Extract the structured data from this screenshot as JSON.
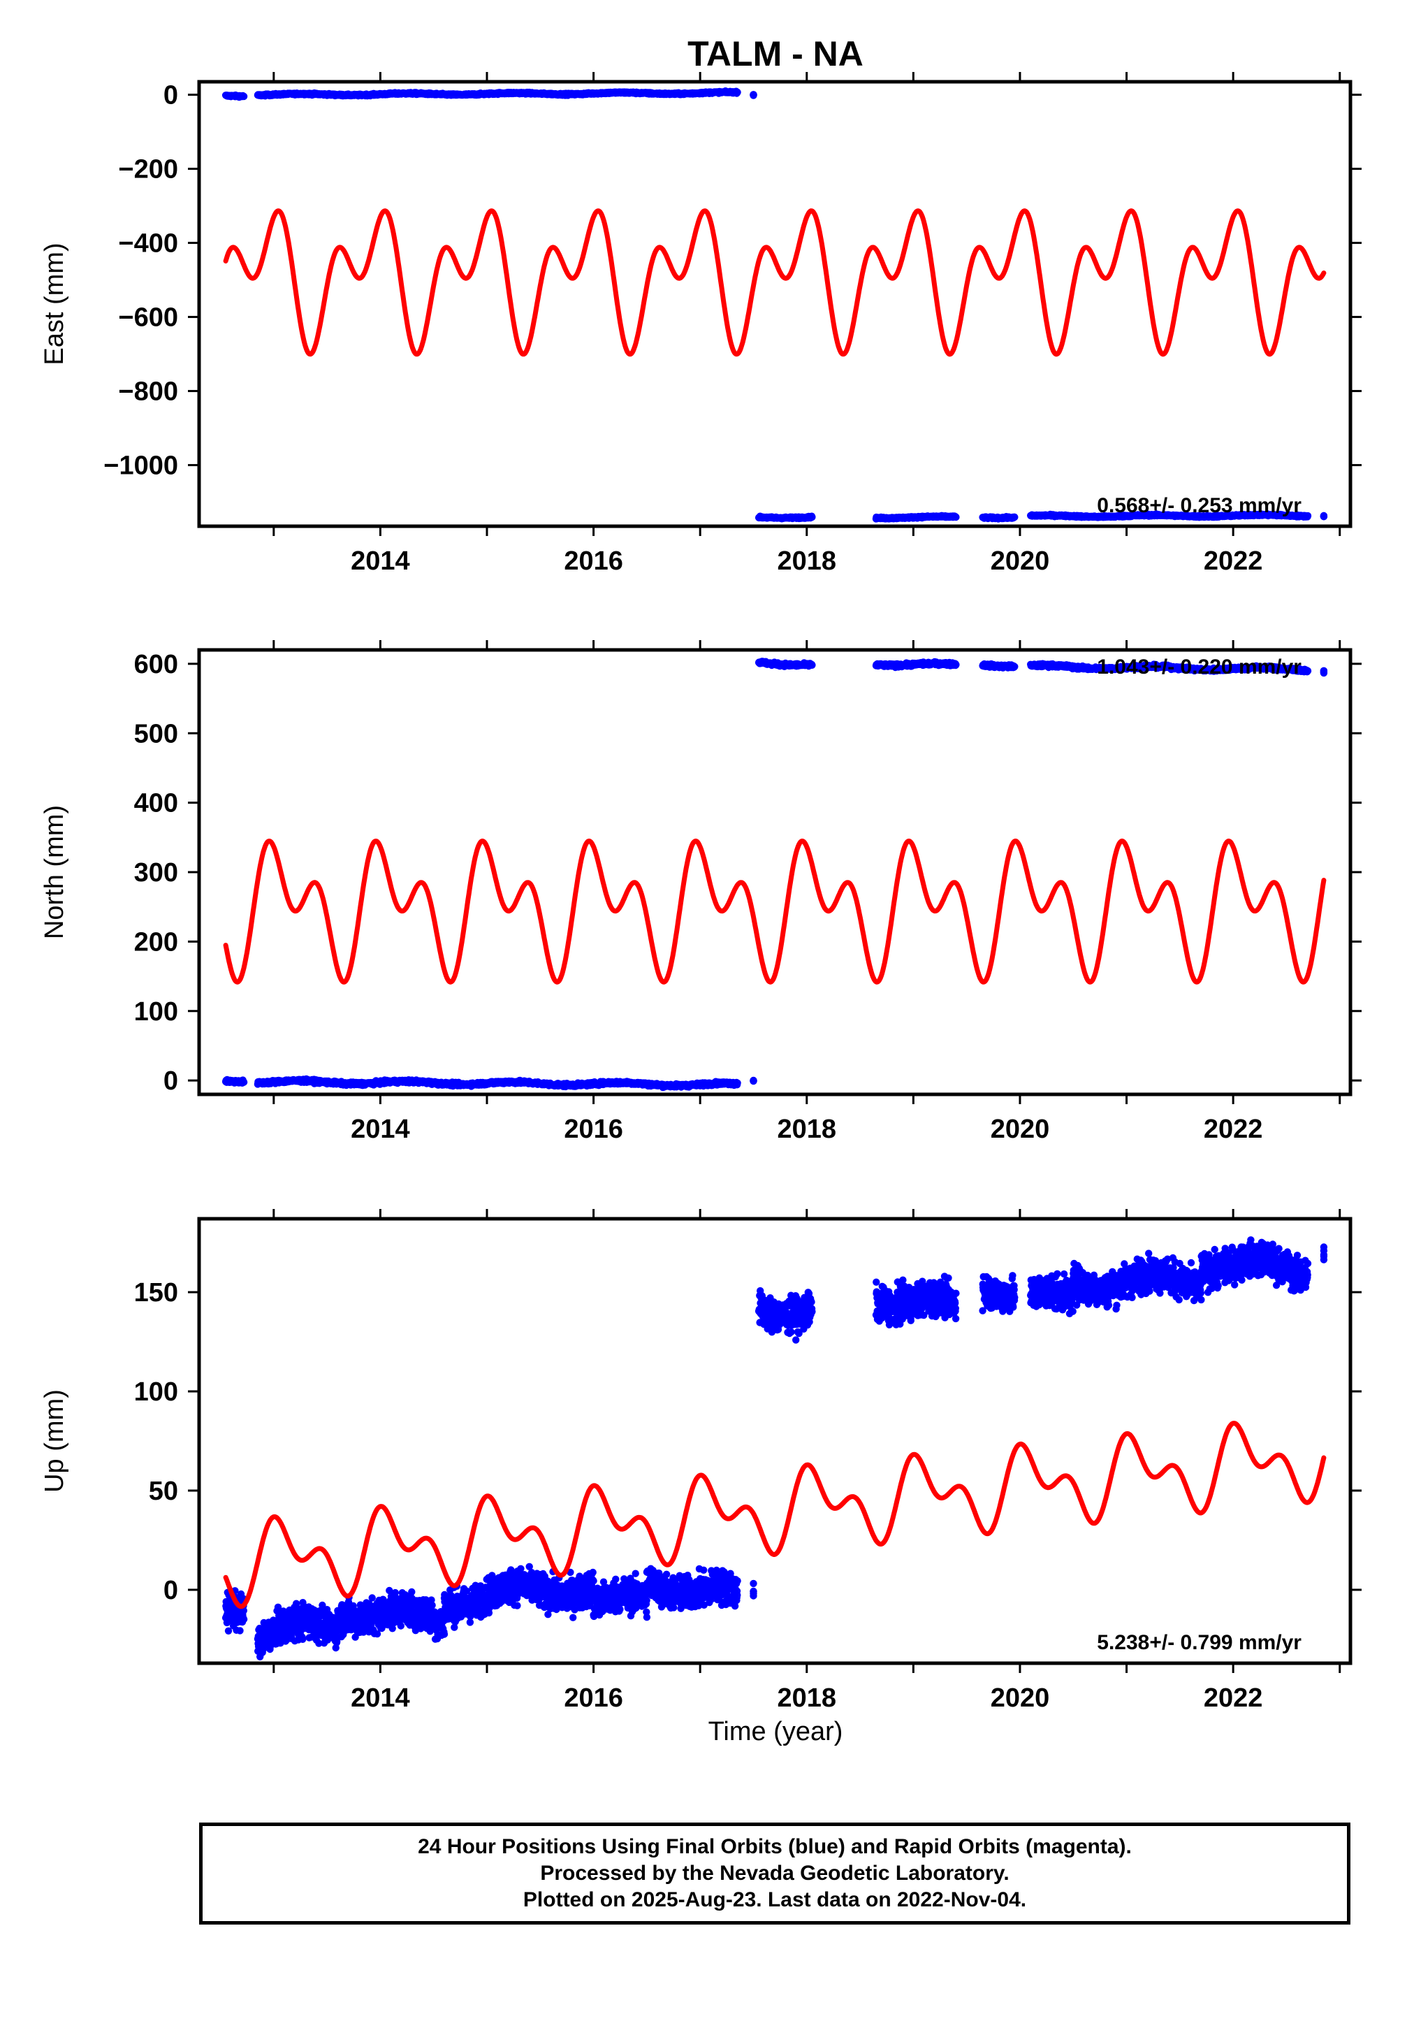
{
  "title": "TALM - NA",
  "xlabel": "Time (year)",
  "footer_lines": [
    "24 Hour Positions Using Final Orbits (blue) and Rapid Orbits (magenta).",
    "Processed by the Nevada Geodetic Laboratory.",
    "Plotted on 2025-Aug-23. Last data on 2022-Nov-04."
  ],
  "colors": {
    "observed": "#0000ff",
    "model": "#ff0000",
    "frame": "#000000"
  },
  "chart_data": [
    {
      "type": "scatter",
      "component": "east",
      "ylabel": "East (mm)",
      "rate": "0.568+/- 0.253 mm/yr",
      "xlim": [
        2012.3,
        2023.1
      ],
      "ylim": [
        -1165,
        35
      ],
      "xticks": [
        2014,
        2016,
        2018,
        2020,
        2022
      ],
      "yticks": [
        0,
        -200,
        -400,
        -600,
        -800,
        -1000
      ],
      "ytick_labels": [
        "0",
        "−200",
        "−400",
        "−600",
        "−800",
        "−1000"
      ],
      "observed_segments": [
        {
          "x": [
            2012.55,
            2012.72
          ],
          "y": [
            -2,
            -2
          ]
        },
        {
          "x": [
            2012.85,
            2017.35
          ],
          "y": [
            0,
            5
          ]
        },
        {
          "x": [
            2017.5,
            2017.5
          ],
          "y": [
            0,
            0
          ]
        },
        {
          "x": [
            2017.55,
            2018.05
          ],
          "y": [
            -1140,
            -1141
          ]
        },
        {
          "x": [
            2018.65,
            2019.4
          ],
          "y": [
            -1141,
            -1141
          ]
        },
        {
          "x": [
            2019.65,
            2019.95
          ],
          "y": [
            -1140,
            -1141
          ]
        },
        {
          "x": [
            2020.1,
            2022.7
          ],
          "y": [
            -1138,
            -1136
          ]
        },
        {
          "x": [
            2022.85,
            2022.85
          ],
          "y": [
            -1136,
            -1136
          ]
        }
      ],
      "model": {
        "x_start": 2012.55,
        "x_end": 2022.85,
        "offset": -485,
        "trend": 0,
        "annual_amplitude": 115,
        "annual_phase": 2.2,
        "semiannual_amplitude": 110,
        "semiannual_phase": 0.6
      }
    },
    {
      "type": "scatter",
      "component": "north",
      "ylabel": "North (mm)",
      "rate": "1.043+/- 0.220 mm/yr",
      "xlim": [
        2012.3,
        2023.1
      ],
      "ylim": [
        -20,
        620
      ],
      "xticks": [
        2014,
        2016,
        2018,
        2020,
        2022
      ],
      "yticks": [
        0,
        100,
        200,
        300,
        400,
        500,
        600
      ],
      "ytick_labels": [
        "0",
        "100",
        "200",
        "300",
        "400",
        "500",
        "600"
      ],
      "observed_segments": [
        {
          "x": [
            2012.55,
            2012.72
          ],
          "y": [
            0,
            0
          ]
        },
        {
          "x": [
            2012.85,
            2017.35
          ],
          "y": [
            -2,
            -6
          ]
        },
        {
          "x": [
            2017.5,
            2017.5
          ],
          "y": [
            0,
            0
          ]
        },
        {
          "x": [
            2017.55,
            2018.05
          ],
          "y": [
            603,
            598
          ]
        },
        {
          "x": [
            2018.65,
            2019.4
          ],
          "y": [
            600,
            598
          ]
        },
        {
          "x": [
            2019.65,
            2019.95
          ],
          "y": [
            600,
            597
          ]
        },
        {
          "x": [
            2020.1,
            2022.7
          ],
          "y": [
            596,
            592
          ]
        },
        {
          "x": [
            2022.85,
            2022.85
          ],
          "y": [
            589,
            589
          ]
        }
      ],
      "model": {
        "x_start": 2012.55,
        "x_end": 2022.85,
        "offset": 252,
        "trend": 0,
        "annual_amplitude": 60,
        "annual_phase": 1.0,
        "semiannual_amplitude": 57,
        "semiannual_phase": 2.5
      }
    },
    {
      "type": "scatter",
      "component": "up",
      "ylabel": "Up (mm)",
      "rate": "5.238+/- 0.799 mm/yr",
      "xlim": [
        2012.3,
        2023.1
      ],
      "ylim": [
        -37,
        187
      ],
      "xticks": [
        2014,
        2016,
        2018,
        2020,
        2022
      ],
      "yticks": [
        0,
        50,
        100,
        150
      ],
      "ytick_labels": [
        "0",
        "50",
        "100",
        "150"
      ],
      "observed_segments": [
        {
          "x": [
            2012.55,
            2012.72
          ],
          "y": [
            -8,
            -8
          ]
        },
        {
          "x": [
            2012.85,
            2013.6
          ],
          "y": [
            -22,
            -18
          ]
        },
        {
          "x": [
            2013.6,
            2014.6
          ],
          "y": [
            -10,
            -15
          ]
        },
        {
          "x": [
            2014.6,
            2016.0
          ],
          "y": [
            -5,
            2
          ]
        },
        {
          "x": [
            2016.0,
            2016.5
          ],
          "y": [
            -8,
            -5
          ]
        },
        {
          "x": [
            2016.5,
            2017.35
          ],
          "y": [
            5,
            -4
          ]
        },
        {
          "x": [
            2017.5,
            2017.5
          ],
          "y": [
            3,
            3
          ]
        },
        {
          "x": [
            2017.55,
            2018.05
          ],
          "y": [
            143,
            140
          ]
        },
        {
          "x": [
            2018.65,
            2019.4
          ],
          "y": [
            148,
            142
          ]
        },
        {
          "x": [
            2019.65,
            2019.95
          ],
          "y": [
            155,
            150
          ]
        },
        {
          "x": [
            2020.1,
            2020.5
          ],
          "y": [
            146,
            147
          ]
        },
        {
          "x": [
            2020.5,
            2021.7
          ],
          "y": [
            155,
            156
          ]
        },
        {
          "x": [
            2021.7,
            2022.7
          ],
          "y": [
            165,
            161
          ]
        },
        {
          "x": [
            2022.85,
            2022.85
          ],
          "y": [
            176,
            176
          ]
        }
      ],
      "model": {
        "x_start": 2012.55,
        "x_end": 2022.85,
        "offset": 40,
        "trend": 5.238,
        "annual_amplitude": 14,
        "annual_phase": 0.9,
        "semiannual_amplitude": 11,
        "semiannual_phase": 1.9
      }
    }
  ]
}
